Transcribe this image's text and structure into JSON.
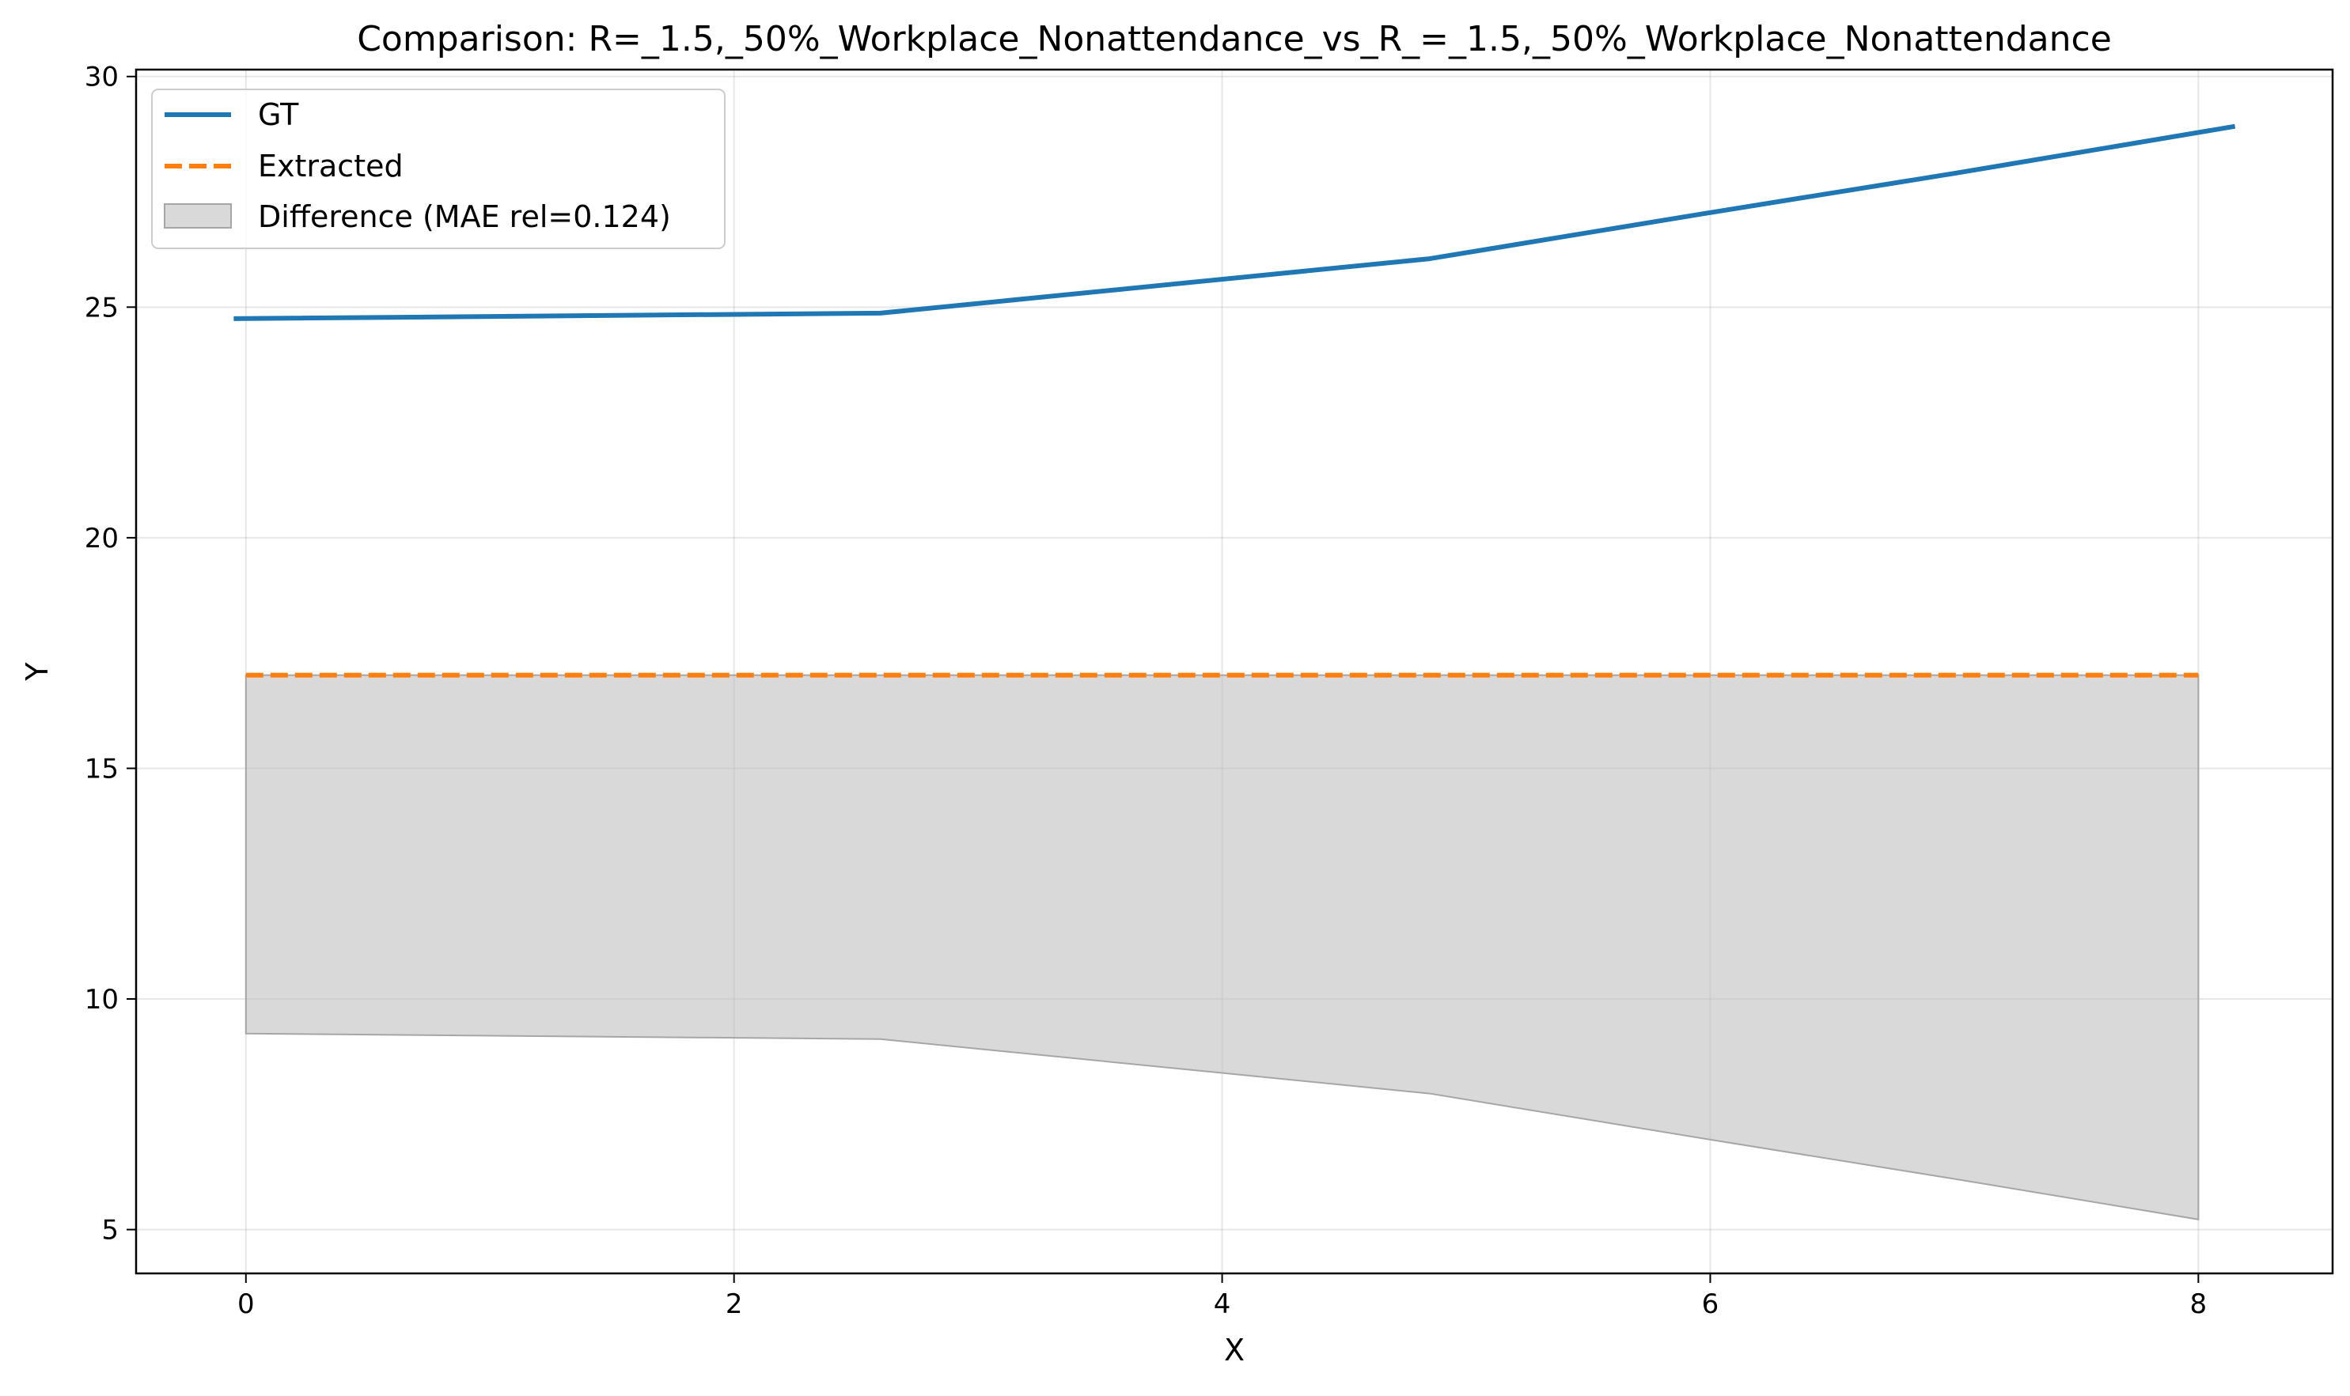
{
  "chart_data": {
    "type": "line",
    "title": "Comparison: R=_1.5,_50%_Workplace_Nonattendance_vs_R_=_1.5,_50%_Workplace_Nonattendance",
    "xlabel": "X",
    "ylabel": "Y",
    "xlim": [
      -0.45,
      8.55
    ],
    "ylim": [
      4.05,
      30.15
    ],
    "xticks": [
      0,
      2,
      4,
      6,
      8
    ],
    "yticks": [
      5,
      10,
      15,
      20,
      25,
      30
    ],
    "grid": true,
    "legend_position": "top-left",
    "series": [
      {
        "name": "GT",
        "style": "solid",
        "color": "#1f77b4",
        "x": [
          -0.05,
          2.6,
          4.85,
          6.0,
          7.0,
          8.15
        ],
        "y": [
          24.75,
          24.87,
          26.05,
          27.05,
          27.9,
          28.92
        ]
      },
      {
        "name": "Extracted",
        "style": "dashed",
        "color": "#ff7f0e",
        "x": [
          0,
          8
        ],
        "y": [
          17.02,
          17.02
        ]
      }
    ],
    "fill": {
      "name": "Difference (MAE rel=0.124)",
      "color": "#bfbfbf",
      "x": [
        0,
        2.6,
        4.85,
        6.0,
        7.0,
        8.0
      ],
      "y_upper": [
        17.02,
        17.02,
        17.02,
        17.02,
        17.02,
        17.02
      ],
      "y_lower": [
        9.25,
        9.13,
        7.95,
        6.95,
        6.1,
        5.22
      ]
    }
  }
}
